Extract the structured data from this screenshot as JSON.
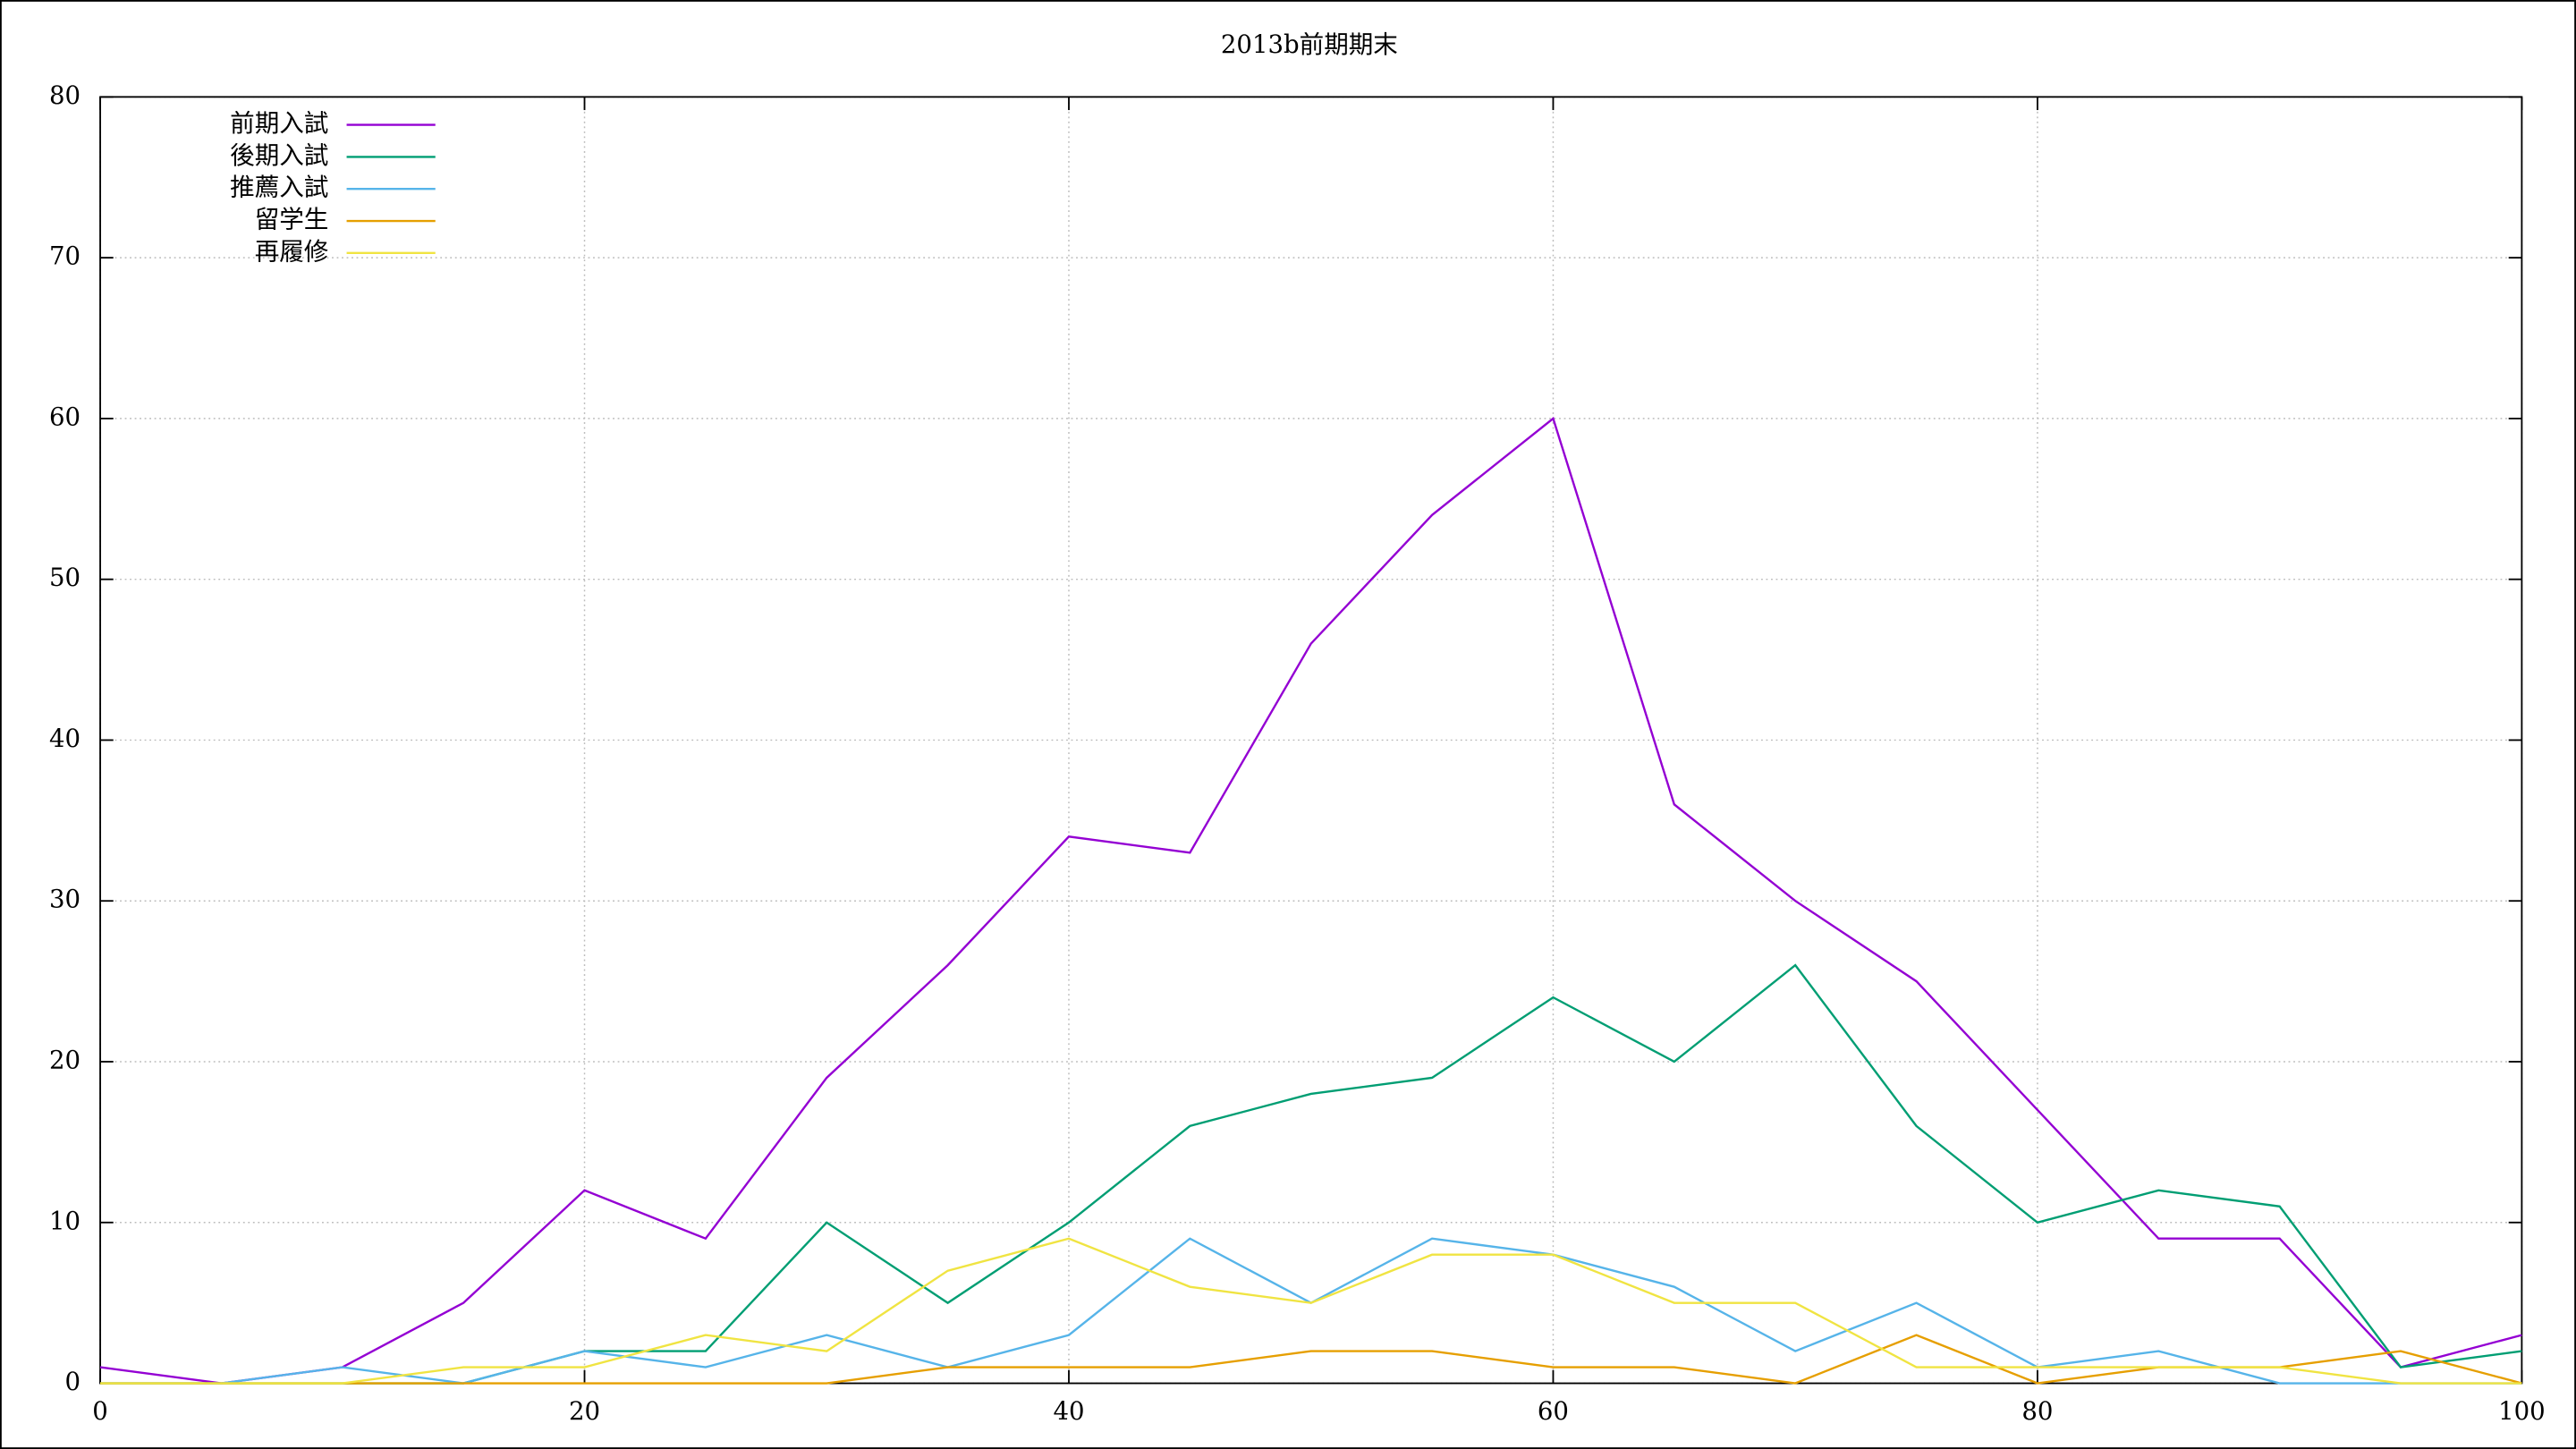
{
  "chart_data": {
    "type": "line",
    "title": "2013b前期期末",
    "x": [
      0,
      5,
      10,
      15,
      20,
      25,
      30,
      35,
      40,
      45,
      50,
      55,
      60,
      65,
      70,
      75,
      80,
      85,
      90,
      95,
      100
    ],
    "series": [
      {
        "name": "前期入試",
        "color": "#9400d3",
        "values": [
          1,
          0,
          1,
          5,
          12,
          9,
          19,
          26,
          34,
          33,
          46,
          54,
          60,
          36,
          30,
          25,
          17,
          9,
          9,
          1,
          3
        ]
      },
      {
        "name": "後期入試",
        "color": "#009e73",
        "values": [
          0,
          0,
          0,
          0,
          2,
          2,
          10,
          5,
          10,
          16,
          18,
          19,
          24,
          20,
          26,
          16,
          10,
          12,
          11,
          1,
          2
        ]
      },
      {
        "name": "推薦入試",
        "color": "#56b4e9",
        "values": [
          0,
          0,
          1,
          0,
          2,
          1,
          3,
          1,
          3,
          9,
          5,
          9,
          8,
          6,
          2,
          5,
          1,
          2,
          0,
          0,
          0
        ]
      },
      {
        "name": "留学生",
        "color": "#e69f00",
        "values": [
          0,
          0,
          0,
          0,
          0,
          0,
          0,
          1,
          1,
          1,
          2,
          2,
          1,
          1,
          0,
          3,
          0,
          1,
          1,
          2,
          0
        ]
      },
      {
        "name": "再履修",
        "color": "#f0e442",
        "values": [
          0,
          0,
          0,
          1,
          1,
          3,
          2,
          7,
          9,
          6,
          5,
          8,
          8,
          5,
          5,
          1,
          1,
          1,
          1,
          0,
          0
        ]
      }
    ],
    "xlim": [
      0,
      100
    ],
    "xticks": [
      0,
      20,
      40,
      60,
      80,
      100
    ],
    "ylim": [
      0,
      80
    ],
    "yticks": [
      0,
      10,
      20,
      30,
      40,
      50,
      60,
      70,
      80
    ],
    "grid": true,
    "legend": "upper-left"
  }
}
